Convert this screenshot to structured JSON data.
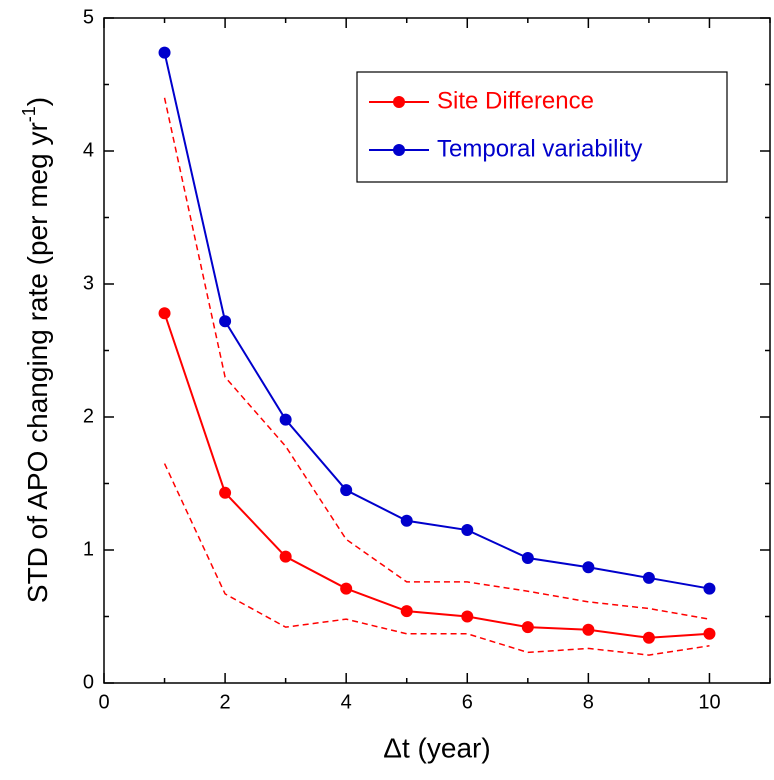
{
  "chart_data": {
    "type": "line",
    "xlabel": "Δt (year)",
    "ylabel": [
      "STD of APO changing rate (per meg yr",
      "-1",
      ")"
    ],
    "x": [
      1,
      2,
      3,
      4,
      5,
      6,
      7,
      8,
      9,
      10
    ],
    "series": [
      {
        "name": "Site Difference",
        "color": "#ff0000",
        "marker": true,
        "dashed": false,
        "values": [
          2.78,
          1.43,
          0.95,
          0.71,
          0.54,
          0.5,
          0.42,
          0.4,
          0.34,
          0.37
        ]
      },
      {
        "name": "Temporal variability",
        "color": "#0000cc",
        "marker": true,
        "dashed": false,
        "values": [
          4.74,
          2.72,
          1.98,
          1.45,
          1.22,
          1.15,
          0.94,
          0.87,
          0.79,
          0.71
        ]
      },
      {
        "color": "#ff0000",
        "marker": false,
        "dashed": true,
        "values": [
          4.4,
          2.3,
          1.78,
          1.08,
          0.76,
          0.76,
          0.69,
          0.61,
          0.56,
          0.48
        ]
      },
      {
        "color": "#ff0000",
        "marker": false,
        "dashed": true,
        "values": [
          1.65,
          0.67,
          0.42,
          0.48,
          0.37,
          0.37,
          0.23,
          0.26,
          0.21,
          0.28
        ]
      }
    ],
    "xlim": [
      0,
      11
    ],
    "ylim": [
      0,
      5
    ],
    "xticks": [
      0,
      2,
      4,
      6,
      8,
      10
    ],
    "yticks": [
      0,
      1,
      2,
      3,
      4,
      5
    ],
    "xminorticks": [
      1,
      3,
      5,
      7,
      9,
      11
    ],
    "yminorticks": [
      0.5,
      1.5,
      2.5,
      3.5,
      4.5
    ],
    "legend": "upper right",
    "grid": false
  }
}
